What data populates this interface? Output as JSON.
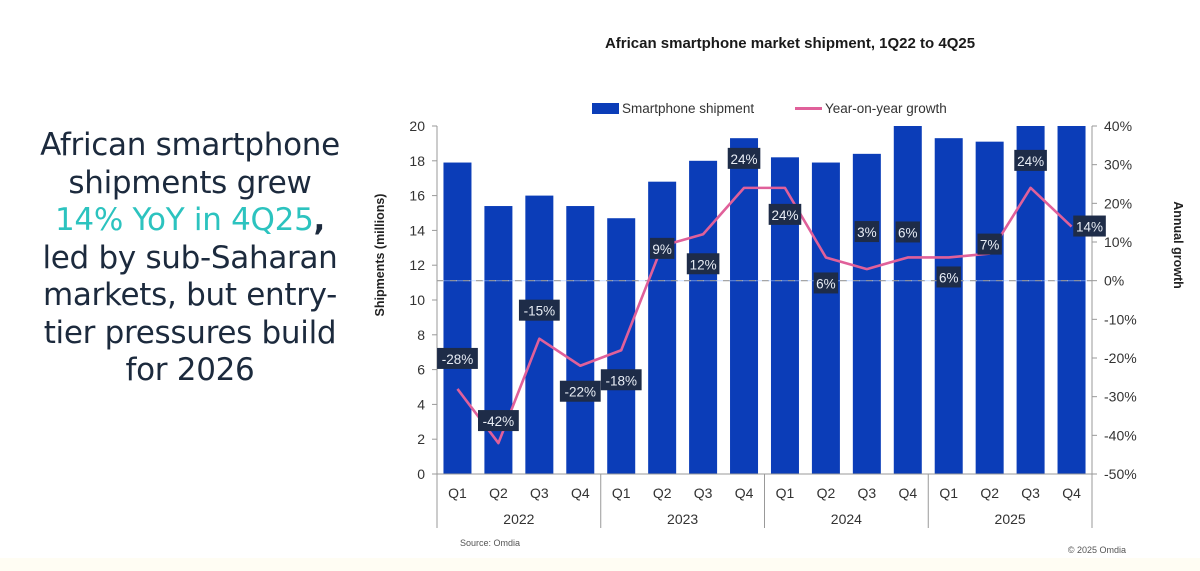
{
  "headline": {
    "line1": "African smartphone",
    "line2": "shipments grew",
    "highlight": "14% YoY in 4Q25",
    "comma": ",",
    "line4": "led by sub-Saharan",
    "line5": "markets, but entry-",
    "line6": "tier pressures build",
    "line7": "for 2026",
    "highlight_color": "#2cc3bf"
  },
  "chart_data": {
    "type": "bar+line",
    "title": "African smartphone market shipment, 1Q22 to 4Q25",
    "categories": [
      "Q1",
      "Q2",
      "Q3",
      "Q4",
      "Q1",
      "Q2",
      "Q3",
      "Q4",
      "Q1",
      "Q2",
      "Q3",
      "Q4",
      "Q1",
      "Q2",
      "Q3",
      "Q4"
    ],
    "groups": [
      {
        "label": "2022",
        "span": 4
      },
      {
        "label": "2023",
        "span": 4
      },
      {
        "label": "2024",
        "span": 4
      },
      {
        "label": "2025",
        "span": 4
      }
    ],
    "series": [
      {
        "name": "Smartphone shipment",
        "type": "bar",
        "axis": "left",
        "color": "#0b3db8",
        "values": [
          17.9,
          15.4,
          16.0,
          15.4,
          14.7,
          16.8,
          18.0,
          19.3,
          18.2,
          17.9,
          18.4,
          20.0,
          19.3,
          19.1,
          20.0,
          20.0
        ]
      },
      {
        "name": "Year-on-year growth",
        "type": "line",
        "axis": "right",
        "color": "#e0609a",
        "values": [
          -28,
          -42,
          -15,
          -22,
          -18,
          9,
          12,
          24,
          24,
          6,
          3,
          6,
          6,
          7,
          24,
          14
        ],
        "labels": [
          "-28%",
          "-42%",
          "-15%",
          "-22%",
          "-18%",
          "9%",
          "12%",
          "24%",
          "24%",
          "6%",
          "3%",
          "6%",
          "6%",
          "7%",
          "24%",
          "14%"
        ]
      }
    ],
    "ylabel": "Shipments (millions)",
    "y2label": "Annual growth",
    "ylim": [
      0,
      20
    ],
    "y2lim": [
      -50,
      40
    ],
    "yticks": [
      "0",
      "2",
      "4",
      "6",
      "8",
      "10",
      "12",
      "14",
      "16",
      "18",
      "20"
    ],
    "y2ticks": [
      "-50%",
      "-40%",
      "-30%",
      "-20%",
      "-10%",
      "0%",
      "10%",
      "20%",
      "30%",
      "40%"
    ],
    "zero_line": "dashed at 0% growth",
    "legend_position": "top-center",
    "label_box_color": "#1e2c48",
    "source": "Source: Omdia",
    "copyright": "© 2025 Omdia"
  }
}
